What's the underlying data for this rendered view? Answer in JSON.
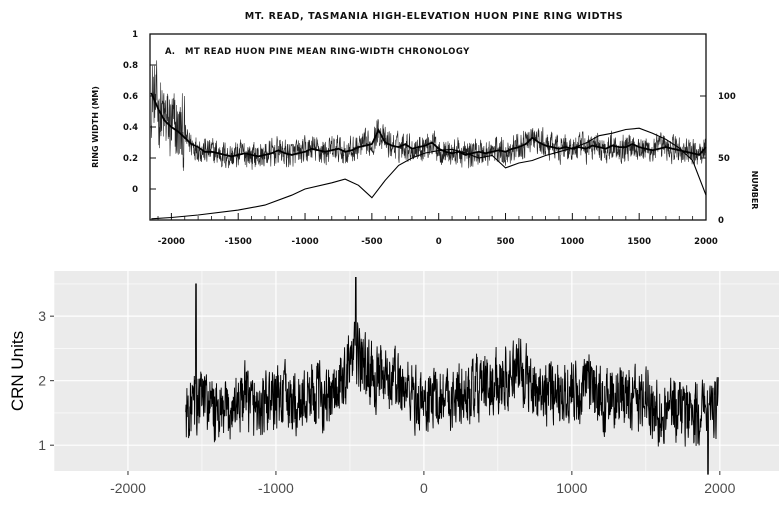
{
  "chart_data": [
    {
      "type": "line",
      "title": "MT. READ, TASMANIA HIGH-ELEVATION HUON PINE RING WIDTHS",
      "panel_label": "A.",
      "subtitle": "MT READ HUON PINE MEAN RING-WIDTH CHRONOLOGY",
      "xlabel": "",
      "ylabel": "RING WIDTH (MM)",
      "y2label": "NUMBER",
      "xlim": [
        -2160,
        2000
      ],
      "ylim": [
        -0.2,
        1.0
      ],
      "y2lim": [
        0,
        150
      ],
      "x_ticks": [
        -2000,
        -1500,
        -1000,
        -500,
        0,
        500,
        1000,
        1500,
        2000
      ],
      "x_tick_labels": [
        "-2000",
        "-1500",
        "-1000",
        "-500",
        "0",
        "500",
        "1000",
        "1500",
        "2000"
      ],
      "y_ticks": [
        0,
        0.2,
        0.4,
        0.6,
        0.8,
        1
      ],
      "y_tick_labels": [
        "0",
        "0.2",
        "0.4",
        "0.6",
        "0.8",
        "1"
      ],
      "y2_ticks": [
        0,
        50,
        100
      ],
      "y2_tick_labels": [
        "0",
        "50",
        "100"
      ],
      "grid": false,
      "series": [
        {
          "role": "ring-width mean (smoothed)",
          "unit": "mm",
          "x": [
            -2150,
            -2100,
            -2050,
            -2000,
            -1950,
            -1900,
            -1850,
            -1800,
            -1750,
            -1700,
            -1650,
            -1600,
            -1550,
            -1500,
            -1450,
            -1400,
            -1350,
            -1300,
            -1250,
            -1200,
            -1150,
            -1100,
            -1050,
            -1000,
            -950,
            -900,
            -850,
            -800,
            -750,
            -700,
            -650,
            -600,
            -550,
            -500,
            -450,
            -400,
            -350,
            -300,
            -250,
            -200,
            -150,
            -100,
            -50,
            0,
            50,
            100,
            150,
            200,
            250,
            300,
            350,
            400,
            450,
            500,
            550,
            600,
            650,
            700,
            750,
            800,
            850,
            900,
            950,
            1000,
            1050,
            1100,
            1150,
            1200,
            1250,
            1300,
            1350,
            1400,
            1450,
            1500,
            1550,
            1600,
            1650,
            1700,
            1750,
            1800,
            1850,
            1900,
            1950,
            2000
          ],
          "y": [
            0.62,
            0.52,
            0.44,
            0.4,
            0.37,
            0.33,
            0.29,
            0.27,
            0.24,
            0.24,
            0.23,
            0.22,
            0.21,
            0.22,
            0.23,
            0.22,
            0.21,
            0.22,
            0.23,
            0.25,
            0.23,
            0.22,
            0.23,
            0.24,
            0.26,
            0.25,
            0.24,
            0.25,
            0.26,
            0.24,
            0.25,
            0.27,
            0.28,
            0.29,
            0.38,
            0.3,
            0.28,
            0.27,
            0.29,
            0.26,
            0.27,
            0.28,
            0.3,
            0.26,
            0.24,
            0.23,
            0.24,
            0.22,
            0.23,
            0.24,
            0.23,
            0.24,
            0.25,
            0.24,
            0.26,
            0.27,
            0.29,
            0.33,
            0.3,
            0.28,
            0.27,
            0.26,
            0.27,
            0.26,
            0.27,
            0.26,
            0.28,
            0.27,
            0.26,
            0.28,
            0.27,
            0.27,
            0.29,
            0.27,
            0.26,
            0.25,
            0.26,
            0.27,
            0.26,
            0.25,
            0.24,
            0.23,
            0.22,
            0.27
          ]
        },
        {
          "role": "sample depth (number of series)",
          "axis": "right",
          "x": [
            -2150,
            -2000,
            -1800,
            -1500,
            -1300,
            -1100,
            -1000,
            -800,
            -700,
            -600,
            -500,
            -400,
            -300,
            -200,
            -100,
            0,
            100,
            200,
            300,
            400,
            500,
            600,
            700,
            800,
            900,
            1000,
            1100,
            1200,
            1300,
            1400,
            1500,
            1600,
            1700,
            1800,
            1900,
            2000
          ],
          "y": [
            1,
            2,
            4,
            8,
            12,
            20,
            25,
            30,
            33,
            28,
            18,
            32,
            44,
            50,
            54,
            56,
            57,
            54,
            50,
            52,
            42,
            46,
            48,
            52,
            55,
            58,
            62,
            68,
            70,
            73,
            74,
            70,
            65,
            58,
            48,
            20
          ]
        }
      ]
    },
    {
      "type": "line",
      "title": "",
      "xlabel": "",
      "ylabel": "CRN Units",
      "xlim": [
        -2500,
        2400
      ],
      "ylim": [
        0.6,
        3.7
      ],
      "x_ticks": [
        -2000,
        -1000,
        0,
        1000,
        2000
      ],
      "x_tick_labels": [
        "-2000",
        "-1000",
        "0",
        "1000",
        "2000"
      ],
      "y_ticks": [
        1,
        2,
        3
      ],
      "y_tick_labels": [
        "1",
        "2",
        "3"
      ],
      "grid": true,
      "background": "#ebebeb",
      "series": [
        {
          "role": "CRN chronology (smoothed trace of dense annual series)",
          "x": [
            -1610,
            -1550,
            -1500,
            -1450,
            -1400,
            -1350,
            -1300,
            -1250,
            -1200,
            -1150,
            -1100,
            -1050,
            -1000,
            -950,
            -900,
            -850,
            -800,
            -750,
            -700,
            -650,
            -600,
            -550,
            -500,
            -450,
            -400,
            -350,
            -300,
            -250,
            -200,
            -150,
            -100,
            -50,
            0,
            50,
            100,
            150,
            200,
            250,
            300,
            350,
            400,
            450,
            500,
            550,
            600,
            650,
            700,
            750,
            800,
            850,
            900,
            950,
            1000,
            1050,
            1100,
            1150,
            1200,
            1250,
            1300,
            1350,
            1400,
            1450,
            1500,
            1550,
            1600,
            1650,
            1700,
            1750,
            1800,
            1850,
            1900,
            1950,
            1990
          ],
          "y": [
            1.5,
            1.6,
            1.75,
            1.6,
            1.5,
            1.45,
            1.55,
            1.7,
            1.75,
            1.6,
            1.55,
            1.65,
            1.7,
            1.8,
            1.65,
            1.6,
            1.7,
            1.85,
            1.75,
            1.7,
            1.8,
            2.0,
            2.3,
            2.4,
            2.2,
            2.1,
            2.0,
            1.95,
            2.05,
            1.9,
            1.85,
            1.7,
            1.65,
            1.7,
            1.8,
            1.75,
            1.7,
            1.8,
            1.75,
            1.85,
            1.9,
            1.85,
            2.0,
            2.05,
            2.1,
            2.15,
            2.0,
            1.9,
            1.85,
            1.8,
            1.9,
            1.85,
            1.8,
            1.75,
            1.9,
            1.85,
            1.7,
            1.75,
            1.8,
            1.7,
            1.75,
            1.65,
            1.8,
            1.55,
            1.5,
            1.6,
            1.55,
            1.5,
            1.55,
            1.5,
            1.45,
            1.4,
            1.75
          ]
        }
      ]
    }
  ]
}
